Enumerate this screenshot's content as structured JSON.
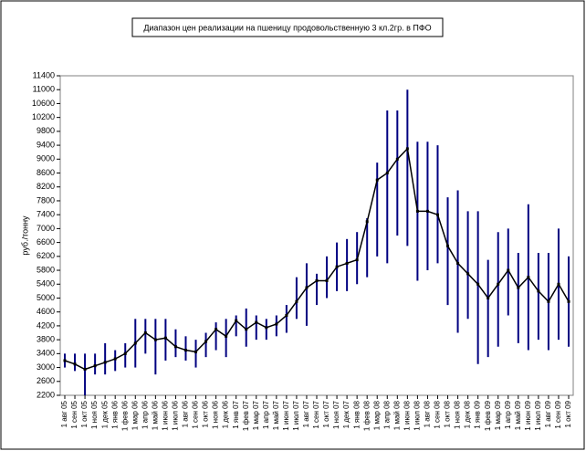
{
  "chart_data": {
    "type": "stock",
    "title": "Диапазон цен реализации на пшеницу продовольственную 3 кл.2гр. в ПФО",
    "y_label": "руб./тонну",
    "categories": [
      "1 авг 05",
      "1 сен 05",
      "1 окт 05",
      "1 ноя 05",
      "1 дек 05",
      "1 янв 06",
      "1 фев 06",
      "1 мар 06",
      "1 апр 06",
      "1 май 06",
      "1 июн 06",
      "1 июл 06",
      "1 авг 06",
      "1 сен 06",
      "1 окт 06",
      "1 ноя 06",
      "1 дек 06",
      "1 янв 07",
      "1 фев 07",
      "1 мар 07",
      "1 апр 07",
      "1 май 07",
      "1 июн 07",
      "1 июл 07",
      "1 авг 07",
      "1 сен 07",
      "1 окт 07",
      "1 ноя 07",
      "1 дек 07",
      "1 янв 08",
      "1 фев 08",
      "1 мар 08",
      "1 апр 08",
      "1 май 08",
      "1 июн 08",
      "1 июл 08",
      "1 авг 08",
      "1 сен 08",
      "1 окт 08",
      "1 ноя 08",
      "1 дек 08",
      "1 янв 09",
      "1 фев 09",
      "1 мар 09",
      "1 апр 09",
      "1 май 09",
      "1 июн 09",
      "1 июл 09",
      "1 авг 09",
      "1 сен 09",
      "1 окт 09"
    ],
    "close": [
      3200,
      3100,
      2950,
      3050,
      3150,
      3250,
      3400,
      3700,
      4000,
      3800,
      3850,
      3600,
      3500,
      3450,
      3750,
      4100,
      3900,
      4350,
      4100,
      4300,
      4150,
      4250,
      4500,
      4900,
      5300,
      5500,
      5500,
      5900,
      6000,
      6100,
      7200,
      8400,
      8600,
      9000,
      9300,
      7500,
      7500,
      7400,
      6500,
      6000,
      5700,
      5400,
      5000,
      5400,
      5800,
      5300,
      5600,
      5200,
      4900,
      5400,
      4900
    ],
    "low": [
      3000,
      2900,
      2200,
      2800,
      2800,
      2900,
      3000,
      3000,
      3400,
      2800,
      3200,
      3300,
      3200,
      3000,
      3300,
      3500,
      3300,
      3900,
      3600,
      3800,
      3800,
      3900,
      4000,
      4400,
      4200,
      4800,
      5000,
      5200,
      5200,
      5400,
      5600,
      6200,
      6000,
      6800,
      6500,
      5500,
      5800,
      6000,
      4800,
      4000,
      4400,
      3100,
      3300,
      3600,
      4500,
      3700,
      3500,
      3800,
      3500,
      3800,
      3600
    ],
    "high": [
      3400,
      3400,
      3400,
      3400,
      3700,
      3500,
      3700,
      4400,
      4400,
      4400,
      4400,
      4100,
      3900,
      3800,
      4000,
      4300,
      4400,
      4500,
      4700,
      4500,
      4400,
      4500,
      4800,
      5600,
      6000,
      5700,
      6200,
      6600,
      6700,
      6900,
      7300,
      8900,
      10400,
      10400,
      11000,
      9500,
      9500,
      9400,
      7900,
      8100,
      7500,
      7500,
      6100,
      6900,
      7000,
      6300,
      7700,
      6300,
      6300,
      7000,
      6200
    ],
    "line_color": "#000000",
    "bar_color": "#000080",
    "ylim": [
      2200,
      11400
    ],
    "yticks": [
      2200,
      2600,
      3000,
      3400,
      3800,
      4200,
      4600,
      5000,
      5400,
      5800,
      6200,
      6600,
      7000,
      7400,
      7800,
      8200,
      8600,
      9000,
      9400,
      9800,
      10200,
      10600,
      11000,
      11400
    ],
    "grid": false
  }
}
